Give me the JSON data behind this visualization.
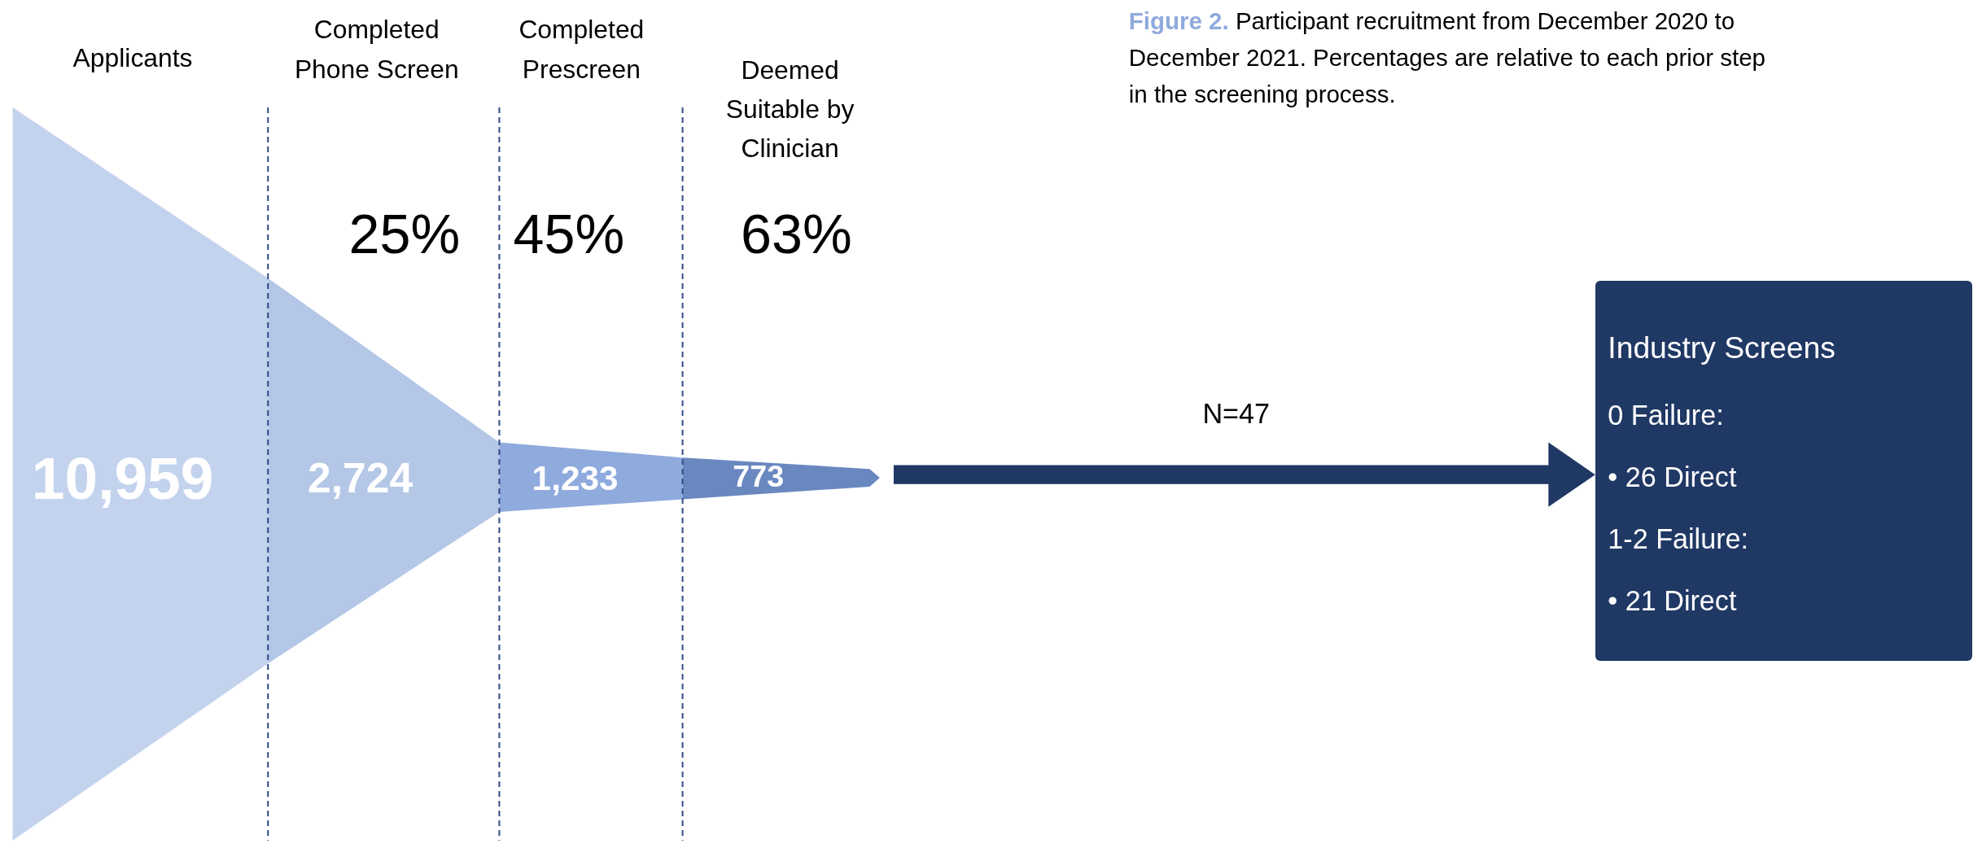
{
  "chart_data": {
    "type": "other",
    "title": "Figure 2.",
    "subtitle": "Participant recruitment from December 2020 to December 2021. Percentages are relative to each prior step in the screening process.",
    "categories": [
      "Applicants",
      "Completed Phone Screen",
      "Completed Prescreen",
      "Deemed Suitable by Clinician"
    ],
    "values": [
      10959,
      2724,
      1233,
      773
    ],
    "value_labels": [
      "10,959",
      "2,724",
      "1,233",
      "773"
    ],
    "colors": [
      "#c3d3ee",
      "#b4c7e7",
      "#8faadc",
      "#6a88c0"
    ],
    "annotations": [
      "25%",
      "45%",
      "63%",
      "N=47",
      "Industry Screens",
      "0 Failure:",
      "• 26 Direct",
      "1-2 Failure:",
      "• 21 Direct"
    ]
  }
}
